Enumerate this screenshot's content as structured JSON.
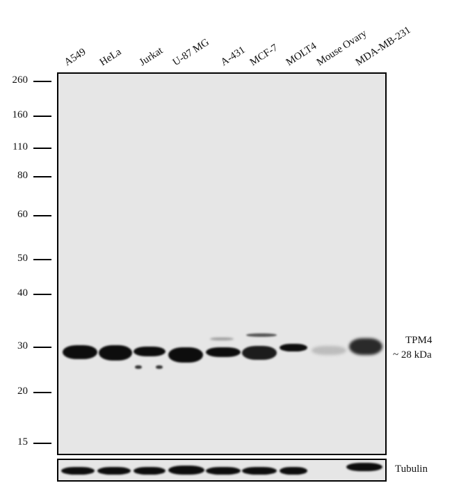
{
  "lanes": [
    "A549",
    "HeLa",
    "Jurkat",
    "U-87 MG",
    "A-431",
    "MCF-7",
    "MOLT4",
    "Mouse Ovary",
    "MDA-MB-231"
  ],
  "markers": [
    "260",
    "160",
    "110",
    "80",
    "60",
    "50",
    "40",
    "30",
    "20",
    "15"
  ],
  "target": {
    "name": "TPM4",
    "size": "~ 28 kDa"
  },
  "loading_control": "Tubulin"
}
